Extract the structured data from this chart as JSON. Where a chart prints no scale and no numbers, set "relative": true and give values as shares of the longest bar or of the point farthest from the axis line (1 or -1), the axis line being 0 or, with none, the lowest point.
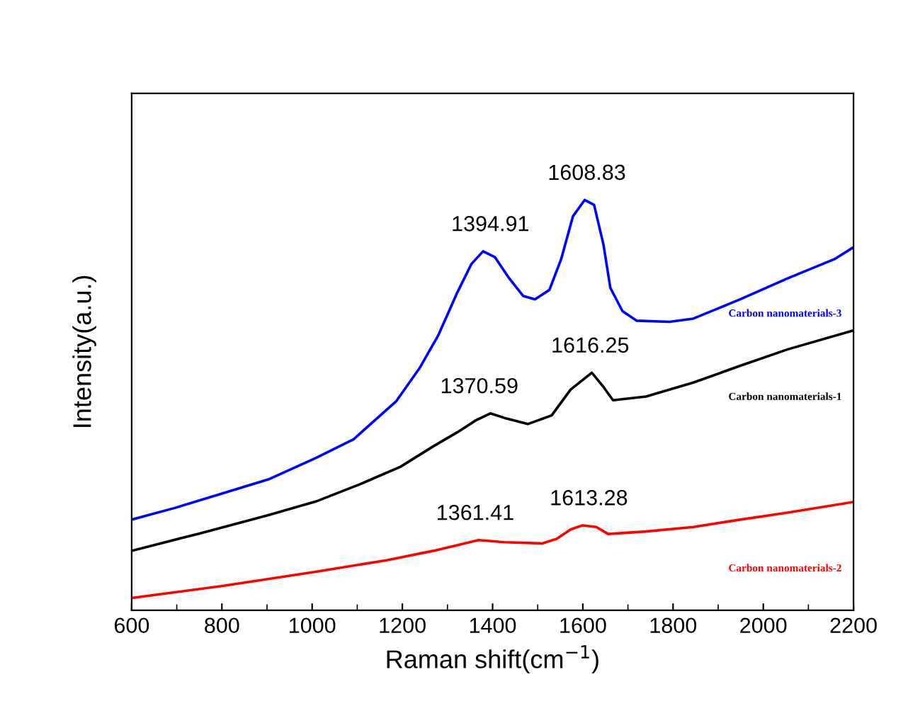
{
  "chart_data": {
    "type": "line",
    "relative": true,
    "xlabel": "Raman shift(cm$^{−1}$)",
    "ylabel": "Intensity(a.u.)",
    "xlim": [
      600,
      2200
    ],
    "xticks": [
      600,
      800,
      1000,
      1200,
      1400,
      1600,
      1800,
      2000,
      2200
    ],
    "grid": false,
    "legend": false,
    "marker": "none",
    "line_style": "solid",
    "series": [
      {
        "name": "Carbon nanomaterials-3",
        "color": "#0000ff",
        "x": [
          600,
          694,
          799,
          903,
          1008,
          1092,
          1186,
          1238,
          1280,
          1322,
          1353,
          1379,
          1405,
          1437,
          1468,
          1494,
          1526,
          1552,
          1578,
          1604,
          1625,
          1646,
          1661,
          1688,
          1719,
          1792,
          1845,
          1949,
          2054,
          2158,
          2200
        ],
        "values": [
          0.221,
          0.249,
          0.284,
          0.319,
          0.371,
          0.417,
          0.509,
          0.59,
          0.671,
          0.775,
          0.844,
          0.875,
          0.861,
          0.809,
          0.766,
          0.758,
          0.781,
          0.856,
          0.96,
          1,
          0.988,
          0.89,
          0.786,
          0.729,
          0.706,
          0.703,
          0.711,
          0.758,
          0.809,
          0.856,
          0.885
        ]
      },
      {
        "name": "Carbon nanomaterials-1",
        "color": "#000000",
        "x": [
          600,
          746,
          903,
          1008,
          1112,
          1196,
          1269,
          1322,
          1363,
          1395,
          1426,
          1478,
          1531,
          1573,
          1620,
          1646,
          1667,
          1740,
          1845,
          1949,
          2054,
          2200
        ],
        "values": [
          0.145,
          0.186,
          0.232,
          0.265,
          0.31,
          0.35,
          0.4,
          0.434,
          0.463,
          0.48,
          0.469,
          0.454,
          0.475,
          0.538,
          0.579,
          0.544,
          0.512,
          0.521,
          0.555,
          0.596,
          0.636,
          0.682
        ]
      },
      {
        "name": "Carbon nanomaterials-2",
        "color": "#ff0000",
        "x": [
          600,
          799,
          1008,
          1165,
          1269,
          1369,
          1426,
          1510,
          1542,
          1573,
          1599,
          1630,
          1656,
          1740,
          1845,
          1949,
          2054,
          2200
        ],
        "values": [
          0.03,
          0.059,
          0.094,
          0.122,
          0.145,
          0.171,
          0.166,
          0.163,
          0.174,
          0.197,
          0.207,
          0.203,
          0.186,
          0.192,
          0.203,
          0.221,
          0.238,
          0.264
        ]
      }
    ],
    "annotations": [
      {
        "text": "1394.91",
        "x": 1394.91,
        "y": 0.875
      },
      {
        "text": "1608.83",
        "x": 1608.83,
        "y": 1
      },
      {
        "text": "1370.59",
        "x": 1370.59,
        "y": 0.48
      },
      {
        "text": "1616.25",
        "x": 1616.25,
        "y": 0.579
      },
      {
        "text": "1361.41",
        "x": 1361.41,
        "y": 0.171
      },
      {
        "text": "1613.28",
        "x": 1613.28,
        "y": 0.207
      }
    ]
  }
}
